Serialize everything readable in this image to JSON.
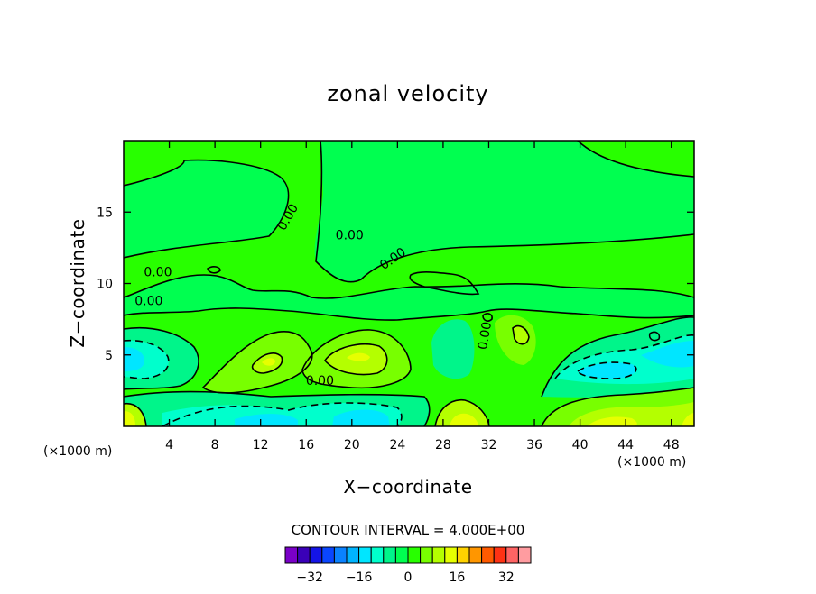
{
  "chart_data": {
    "type": "contour",
    "title": "zonal velocity",
    "xlabel": "X−coordinate",
    "ylabel": "Z−coordinate",
    "x_unit": "(×1000 m)",
    "z_unit": "(×1000 m)",
    "xlim": [
      0,
      50
    ],
    "ylim": [
      0,
      20
    ],
    "x_ticks": [
      4,
      8,
      12,
      16,
      20,
      24,
      28,
      32,
      36,
      40,
      44,
      48
    ],
    "x_tick_labels": [
      "4",
      "8",
      "12",
      "16",
      "20",
      "24",
      "28",
      "32",
      "36",
      "40",
      "44",
      "48"
    ],
    "y_ticks": [
      5,
      10,
      15
    ],
    "y_tick_labels": [
      "5",
      "10",
      "15"
    ],
    "contour_interval_text": "CONTOUR INTERVAL = 4.000E+00",
    "contour_line_labels": [
      {
        "text": "0.00",
        "x": 14.7,
        "z": 14.5,
        "angle": -60
      },
      {
        "text": "0.00",
        "x": 19.8,
        "z": 13.1,
        "angle": 0
      },
      {
        "text": "0.00",
        "x": 23.8,
        "z": 11.5,
        "angle": -35
      },
      {
        "text": "0.00",
        "x": 3.0,
        "z": 10.5,
        "angle": 0
      },
      {
        "text": "0.00",
        "x": 2.2,
        "z": 8.5,
        "angle": 0
      },
      {
        "text": "0.00",
        "x": 17.2,
        "z": 2.9,
        "angle": 0
      },
      {
        "text": "0.00",
        "x": 32.0,
        "z": 6.3,
        "angle": -80
      }
    ],
    "colorbar": {
      "levels": [
        -36,
        -32,
        -28,
        -24,
        -20,
        -16,
        -12,
        -8,
        -4,
        0,
        4,
        8,
        12,
        16,
        20,
        24,
        28,
        32,
        36
      ],
      "colors": [
        "#7a00c8",
        "#3a00b8",
        "#1414e6",
        "#0a46ff",
        "#0a82ff",
        "#00b4ff",
        "#00e6ff",
        "#00ffcc",
        "#00f58a",
        "#00ff50",
        "#28ff00",
        "#78ff00",
        "#b4ff00",
        "#e6ff00",
        "#ffd200",
        "#ff9600",
        "#ff5a00",
        "#ff3214",
        "#ff6464",
        "#ff9ca0"
      ],
      "tick_values": [
        -32,
        -16,
        0,
        16,
        32
      ],
      "tick_labels": [
        "−32",
        "−16",
        "0",
        "16",
        "32"
      ]
    }
  }
}
